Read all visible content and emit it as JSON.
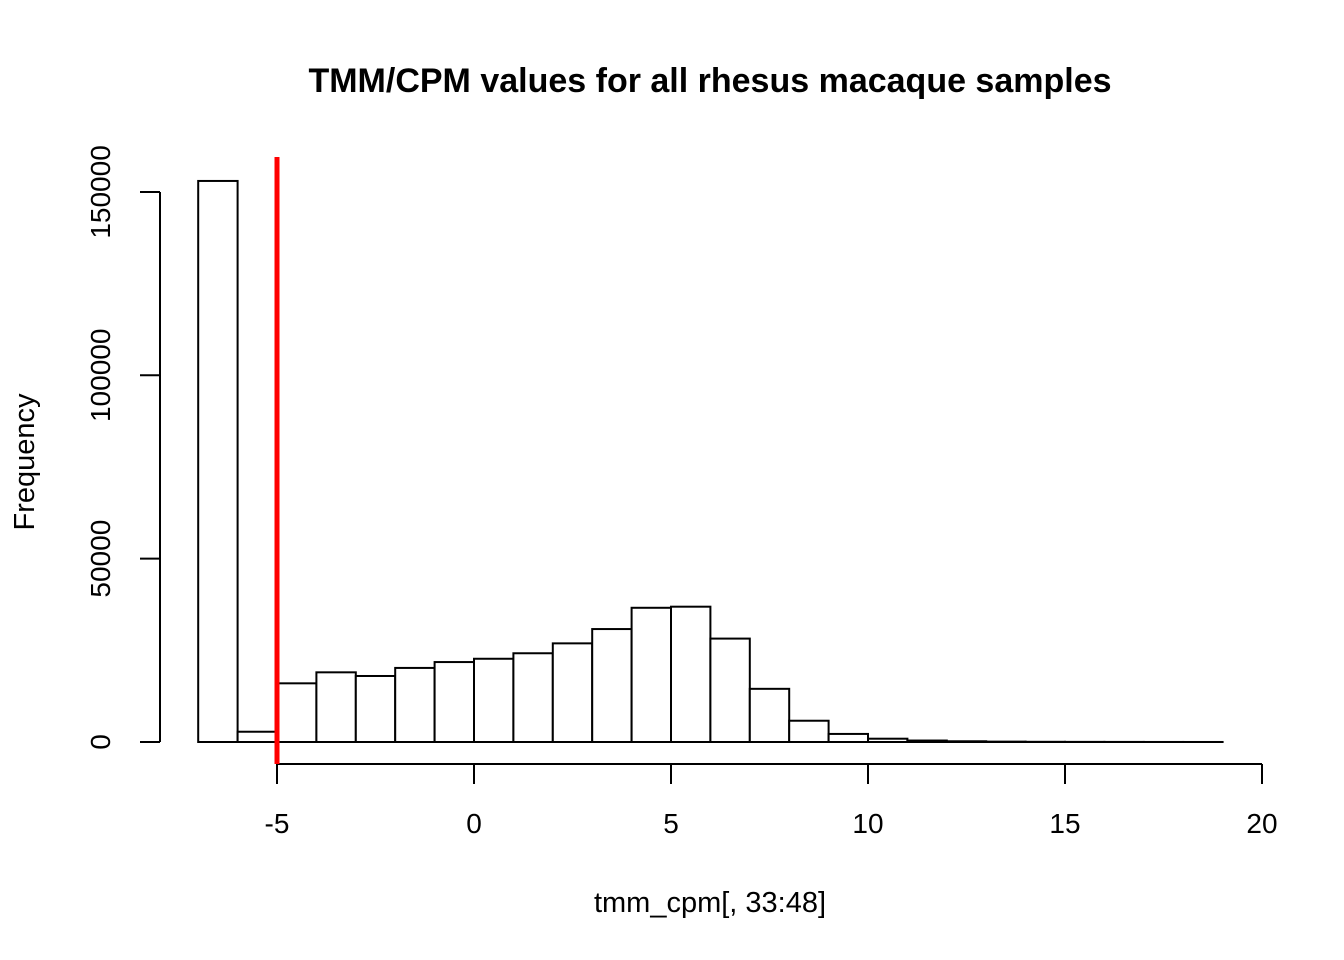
{
  "chart_data": {
    "type": "bar",
    "title": "TMM/CPM values for all rhesus macaque samples",
    "xlabel": "tmm_cpm[, 33:48]",
    "ylabel": "Frequency",
    "xlim": [
      -7,
      20
    ],
    "ylim": [
      0,
      150000
    ],
    "x_ticks": [
      -5,
      0,
      5,
      10,
      15,
      20
    ],
    "y_ticks": [
      0,
      50000,
      100000,
      150000
    ],
    "bin_width": 1,
    "bins": [
      {
        "start": -7,
        "end": -6,
        "count": 153000
      },
      {
        "start": -6,
        "end": -5,
        "count": 2800
      },
      {
        "start": -5,
        "end": -4,
        "count": 16000
      },
      {
        "start": -4,
        "end": -3,
        "count": 19000
      },
      {
        "start": -3,
        "end": -2,
        "count": 18000
      },
      {
        "start": -2,
        "end": -1,
        "count": 20200
      },
      {
        "start": -1,
        "end": 0,
        "count": 21800
      },
      {
        "start": 0,
        "end": 1,
        "count": 22700
      },
      {
        "start": 1,
        "end": 2,
        "count": 24200
      },
      {
        "start": 2,
        "end": 3,
        "count": 26900
      },
      {
        "start": 3,
        "end": 4,
        "count": 30800
      },
      {
        "start": 4,
        "end": 5,
        "count": 36600
      },
      {
        "start": 5,
        "end": 6,
        "count": 36900
      },
      {
        "start": 6,
        "end": 7,
        "count": 28200
      },
      {
        "start": 7,
        "end": 8,
        "count": 14500
      },
      {
        "start": 8,
        "end": 9,
        "count": 5800
      },
      {
        "start": 9,
        "end": 10,
        "count": 2200
      },
      {
        "start": 10,
        "end": 11,
        "count": 900
      },
      {
        "start": 11,
        "end": 12,
        "count": 400
      },
      {
        "start": 12,
        "end": 13,
        "count": 200
      },
      {
        "start": 13,
        "end": 14,
        "count": 100
      },
      {
        "start": 14,
        "end": 15,
        "count": 50
      },
      {
        "start": 15,
        "end": 16,
        "count": 30
      },
      {
        "start": 16,
        "end": 17,
        "count": 20
      },
      {
        "start": 17,
        "end": 18,
        "count": 10
      },
      {
        "start": 18,
        "end": 19,
        "count": 5
      }
    ],
    "threshold_line": {
      "x": -5,
      "color": "#ff0000"
    }
  }
}
